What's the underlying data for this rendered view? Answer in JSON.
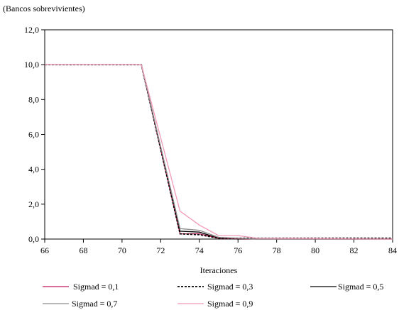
{
  "chart_data": {
    "type": "line",
    "ylabel": "(Bancos sobrevivientes)",
    "xlabel": "Iteraciones",
    "xlim": [
      66,
      84
    ],
    "ylim": [
      0,
      12
    ],
    "x_ticks": [
      "66",
      "68",
      "70",
      "72",
      "74",
      "76",
      "78",
      "80",
      "82",
      "84"
    ],
    "y_ticks": [
      "0,0",
      "2,0",
      "4,0",
      "6,0",
      "8,0",
      "10,0",
      "12,0"
    ],
    "legend_position": "bottom",
    "series": [
      {
        "name": "Sigmad = 0,1",
        "color": "#c2185b",
        "dash": "solid",
        "x": [
          66,
          71,
          73,
          74,
          75,
          76,
          77,
          84
        ],
        "y": [
          10,
          10,
          0.3,
          0.3,
          0.05,
          0.02,
          0.0,
          0.0
        ]
      },
      {
        "name": "Sigmad = 0,3",
        "color": "#000000",
        "dash": "dotted",
        "x": [
          66,
          71,
          73,
          74,
          75,
          76,
          77,
          84
        ],
        "y": [
          10,
          10,
          0.3,
          0.25,
          0.05,
          0.05,
          0.05,
          0.05
        ]
      },
      {
        "name": "Sigmad = 0,5",
        "color": "#000000",
        "dash": "solid",
        "x": [
          66,
          71,
          73,
          74,
          75,
          76,
          77,
          84
        ],
        "y": [
          10,
          10,
          0.45,
          0.4,
          0.05,
          0.0,
          0.0,
          0.0
        ]
      },
      {
        "name": "Sigmad = 0,7",
        "color": "#8c8c8c",
        "dash": "solid",
        "x": [
          66,
          71,
          73,
          74,
          75,
          76,
          77,
          84
        ],
        "y": [
          10,
          10,
          0.6,
          0.5,
          0.1,
          0.05,
          0.0,
          0.0
        ]
      },
      {
        "name": "Sigmad = 0,9",
        "color": "#f19bb8",
        "dash": "solid",
        "x": [
          66,
          71,
          73,
          74,
          75,
          76,
          77,
          84
        ],
        "y": [
          10,
          10,
          1.6,
          0.8,
          0.2,
          0.2,
          0.05,
          0.0
        ]
      }
    ]
  }
}
